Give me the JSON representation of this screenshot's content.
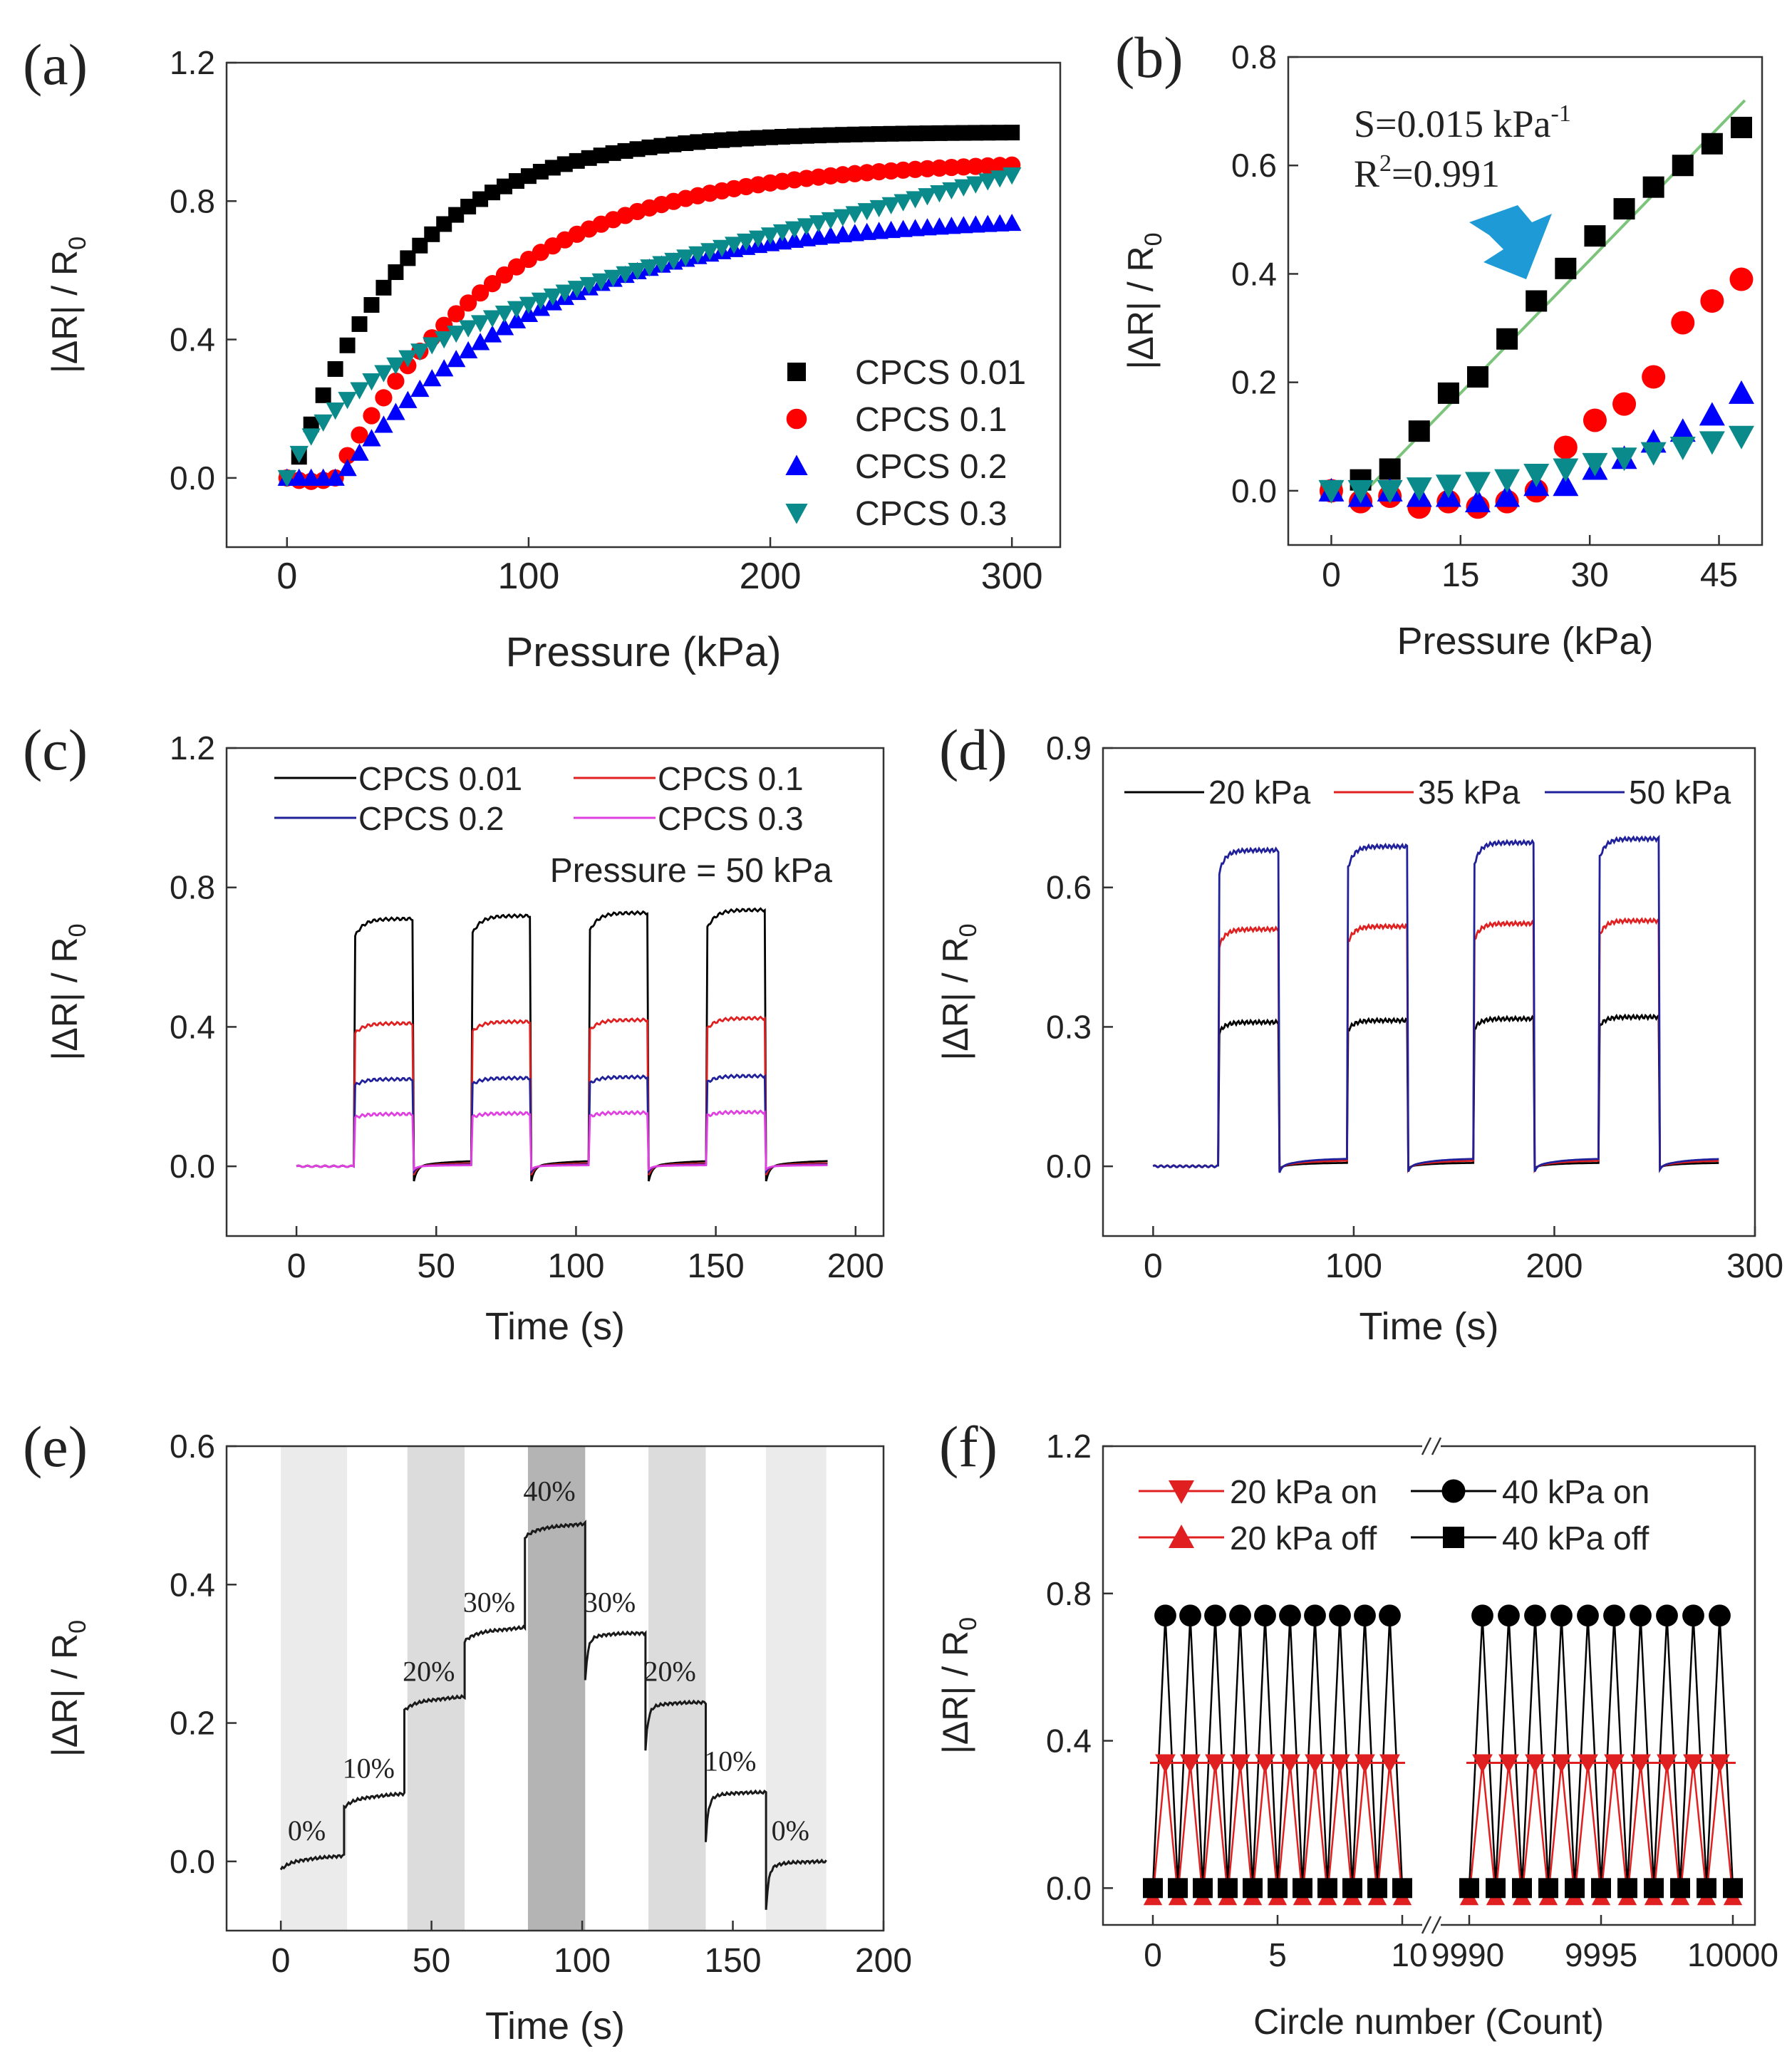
{
  "chart_data": [
    {
      "panel": "(a)",
      "type": "scatter",
      "xlabel": "Pressure (kPa)",
      "ylabel": "|ΔR| / R0",
      "xlim": [
        -25,
        320
      ],
      "ylim": [
        -0.2,
        1.2
      ],
      "xticks": [
        "0",
        "100",
        "200",
        "300"
      ],
      "yticks": [
        "0.0",
        "0.4",
        "0.8",
        "1.2"
      ],
      "legend_position": "bottom-right",
      "series": [
        {
          "name": "CPCS 0.01",
          "marker": "square",
          "color": "#000000",
          "model": {
            "kind": "sat",
            "a": 1.0,
            "k": 0.021,
            "lag": 2,
            "lagc": 0.02
          }
        },
        {
          "name": "CPCS 0.1",
          "marker": "circle",
          "color": "#ff0000",
          "model": {
            "kind": "sat",
            "a": 0.92,
            "k": 0.0145,
            "lag": 20,
            "lagc": 0.01
          }
        },
        {
          "name": "CPCS 0.2",
          "marker": "triangle-up",
          "color": "#0000ff",
          "model": {
            "kind": "sat",
            "a": 0.76,
            "k": 0.0125,
            "lag": 22,
            "lagc": 0.0
          }
        },
        {
          "name": "CPCS 0.3",
          "marker": "triangle-down",
          "color": "#0a8a8a",
          "model": {
            "kind": "slow"
          }
        }
      ]
    },
    {
      "panel": "(b)",
      "type": "scatter",
      "xlabel": "Pressure (kPa)",
      "ylabel": "|ΔR| / R0",
      "xlim": [
        -5,
        50
      ],
      "ylim": [
        -0.1,
        0.8
      ],
      "xticks": [
        "0",
        "15",
        "30",
        "45"
      ],
      "yticks": [
        "0.0",
        "0.2",
        "0.4",
        "0.6",
        "0.8"
      ],
      "annotation_sensitivity": "S=0.015 kPa",
      "annotation_sensitivity_exp": "-1",
      "annotation_r2_base": "R",
      "annotation_r2_exp": "2",
      "annotation_r2_value": "=0.991",
      "fit_line": {
        "x": [
          4,
          48
        ],
        "y": [
          0.0,
          0.72
        ],
        "color": "#7cc47c"
      },
      "series": [
        {
          "name": "CPCS 0.01",
          "marker": "square",
          "color": "#000000",
          "x": [
            0,
            3.4,
            6.8,
            10.2,
            13.6,
            17,
            20.4,
            23.8,
            27.2,
            30.6,
            34,
            37.4,
            40.8,
            44.2,
            47.6
          ],
          "y": [
            0,
            0.02,
            0.04,
            0.11,
            0.18,
            0.21,
            0.28,
            0.35,
            0.41,
            0.47,
            0.52,
            0.56,
            0.6,
            0.64,
            0.67
          ]
        },
        {
          "name": "CPCS 0.1",
          "marker": "circle",
          "color": "#ff0000",
          "x": [
            0,
            3.4,
            6.8,
            10.2,
            13.6,
            17,
            20.4,
            23.8,
            27.2,
            30.6,
            34,
            37.4,
            40.8,
            44.2,
            47.6
          ],
          "y": [
            0,
            -0.02,
            -0.01,
            -0.03,
            -0.02,
            -0.03,
            -0.02,
            0.0,
            0.08,
            0.13,
            0.16,
            0.21,
            0.31,
            0.35,
            0.39
          ]
        },
        {
          "name": "CPCS 0.2",
          "marker": "triangle-up",
          "color": "#0000ff",
          "x": [
            0,
            3.4,
            6.8,
            10.2,
            13.6,
            17,
            20.4,
            23.8,
            27.2,
            30.6,
            34,
            37.4,
            40.8,
            44.2,
            47.6
          ],
          "y": [
            0,
            -0.01,
            0,
            -0.01,
            -0.01,
            -0.02,
            -0.01,
            0.01,
            0.01,
            0.04,
            0.06,
            0.09,
            0.11,
            0.14,
            0.18
          ]
        },
        {
          "name": "CPCS 0.3",
          "marker": "triangle-down",
          "color": "#0a8a8a",
          "x": [
            0,
            3.4,
            6.8,
            10.2,
            13.6,
            17,
            20.4,
            23.8,
            27.2,
            30.6,
            34,
            37.4,
            40.8,
            44.2,
            47.6
          ],
          "y": [
            0,
            0,
            0,
            0.005,
            0.01,
            0.015,
            0.02,
            0.03,
            0.04,
            0.05,
            0.06,
            0.07,
            0.08,
            0.09,
            0.1
          ]
        }
      ]
    },
    {
      "panel": "(c)",
      "type": "line",
      "xlabel": "Time (s)",
      "ylabel": "|ΔR| / R0",
      "xlim": [
        -25,
        210
      ],
      "ylim": [
        -0.2,
        1.2
      ],
      "xticks": [
        "0",
        "50",
        "100",
        "150",
        "200"
      ],
      "yticks": [
        "0.0",
        "0.4",
        "0.8",
        "1.2"
      ],
      "annotation": "Pressure = 50 kPa",
      "pulses": {
        "start": 0,
        "end": 190,
        "on": [
          21,
          63,
          105,
          147
        ],
        "width": 21
      },
      "series": [
        {
          "name": "CPCS 0.01",
          "color": "#000000",
          "on_level": 0.71
        },
        {
          "name": "CPCS 0.1",
          "color": "#e02020",
          "on_level": 0.41
        },
        {
          "name": "CPCS 0.2",
          "color": "#20209a",
          "on_level": 0.25
        },
        {
          "name": "CPCS 0.3",
          "color": "#e040e0",
          "on_level": 0.15
        }
      ]
    },
    {
      "panel": "(d)",
      "type": "line",
      "xlabel": "Time (s)",
      "ylabel": "|ΔR| / R0",
      "xlim": [
        -25,
        300
      ],
      "ylim": [
        -0.15,
        0.9
      ],
      "xticks": [
        "0",
        "100",
        "200",
        "300"
      ],
      "yticks": [
        "0.0",
        "0.3",
        "0.6",
        "0.9"
      ],
      "pulses": {
        "start": 0,
        "end": 282,
        "on": [
          33,
          97,
          160,
          222
        ],
        "width": 30
      },
      "series": [
        {
          "name": "20 kPa",
          "color": "#000000",
          "on_level": 0.31
        },
        {
          "name": "35 kPa",
          "color": "#e02020",
          "on_level": 0.51
        },
        {
          "name": "50 kPa",
          "color": "#20209a",
          "on_level": 0.68
        }
      ]
    },
    {
      "panel": "(e)",
      "type": "line",
      "xlabel": "Time (s)",
      "ylabel": "|ΔR| / R0",
      "xlim": [
        -18,
        200
      ],
      "ylim": [
        -0.1,
        0.6
      ],
      "xticks": [
        "0",
        "50",
        "100",
        "150",
        "200"
      ],
      "yticks": [
        "0.0",
        "0.2",
        "0.4",
        "0.6"
      ],
      "bands": [
        {
          "x0": 0,
          "x1": 22,
          "shade": "#ebebeb"
        },
        {
          "x0": 42,
          "x1": 61,
          "shade": "#dcdcdc"
        },
        {
          "x0": 82,
          "x1": 101,
          "shade": "#b4b4b4"
        },
        {
          "x0": 122,
          "x1": 141,
          "shade": "#dcdcdc"
        },
        {
          "x0": 161,
          "x1": 181,
          "shade": "#ebebeb"
        }
      ],
      "steps": [
        {
          "x0": 0,
          "x1": 21,
          "y": 0.0,
          "label": "0%"
        },
        {
          "x0": 21,
          "x1": 41,
          "y": 0.09,
          "label": "10%"
        },
        {
          "x0": 41,
          "x1": 61,
          "y": 0.23,
          "label": "20%"
        },
        {
          "x0": 61,
          "x1": 81,
          "y": 0.33,
          "label": "30%"
        },
        {
          "x0": 81,
          "x1": 101,
          "y": 0.48,
          "label": "40%"
        },
        {
          "x0": 101,
          "x1": 121,
          "y": 0.33,
          "label": "30%"
        },
        {
          "x0": 121,
          "x1": 141,
          "y": 0.23,
          "label": "20%"
        },
        {
          "x0": 141,
          "x1": 161,
          "y": 0.1,
          "label": "10%"
        },
        {
          "x0": 161,
          "x1": 181,
          "y": 0.0,
          "label": "0%"
        }
      ]
    },
    {
      "panel": "(f)",
      "type": "line",
      "xlabel": "Circle number (Count)",
      "ylabel": "|ΔR| / R0",
      "ylim": [
        -0.1,
        1.2
      ],
      "x_segments": [
        {
          "from": 0,
          "to": 10
        },
        {
          "from": 9990,
          "to": 10000
        }
      ],
      "xticks": [
        "0",
        "5",
        "10",
        "9990",
        "9995",
        "10000"
      ],
      "yticks": [
        "0.0",
        "0.4",
        "0.8",
        "1.2"
      ],
      "series": [
        {
          "name": "20 kPa on",
          "marker": "triangle-down",
          "color": "#e02020",
          "value": 0.34
        },
        {
          "name": "40 kPa on",
          "marker": "circle",
          "color": "#000000",
          "value": 0.74
        },
        {
          "name": "20 kPa off",
          "marker": "triangle-up",
          "color": "#e02020",
          "value": -0.025
        },
        {
          "name": "40 kPa off",
          "marker": "square",
          "color": "#000000",
          "value": 0.0
        }
      ]
    }
  ]
}
